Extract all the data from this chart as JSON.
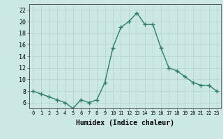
{
  "x": [
    0,
    1,
    2,
    3,
    4,
    5,
    6,
    7,
    8,
    9,
    10,
    11,
    12,
    13,
    14,
    15,
    16,
    17,
    18,
    19,
    20,
    21,
    22,
    23
  ],
  "y": [
    8,
    7.5,
    7,
    6.5,
    6,
    5,
    6.5,
    6,
    6.5,
    9.5,
    15.5,
    19,
    20,
    21.5,
    19.5,
    19.5,
    15.5,
    12,
    11.5,
    10.5,
    9.5,
    9,
    9,
    8
  ],
  "line_color": "#2e7d6e",
  "marker": "+",
  "marker_size": 4,
  "linewidth": 1.0,
  "bg_color": "#cce8e4",
  "grid_color": "#b8d4d0",
  "xlabel": "Humidex (Indice chaleur)",
  "xlabel_fontsize": 7,
  "xtick_labels": [
    "0",
    "1",
    "2",
    "3",
    "4",
    "5",
    "6",
    "7",
    "8",
    "9",
    "10",
    "11",
    "12",
    "13",
    "14",
    "15",
    "16",
    "17",
    "18",
    "19",
    "20",
    "21",
    "22",
    "23"
  ],
  "ytick_values": [
    6,
    8,
    10,
    12,
    14,
    16,
    18,
    20,
    22
  ],
  "ylim": [
    5,
    23
  ],
  "xlim": [
    -0.5,
    23.5
  ]
}
